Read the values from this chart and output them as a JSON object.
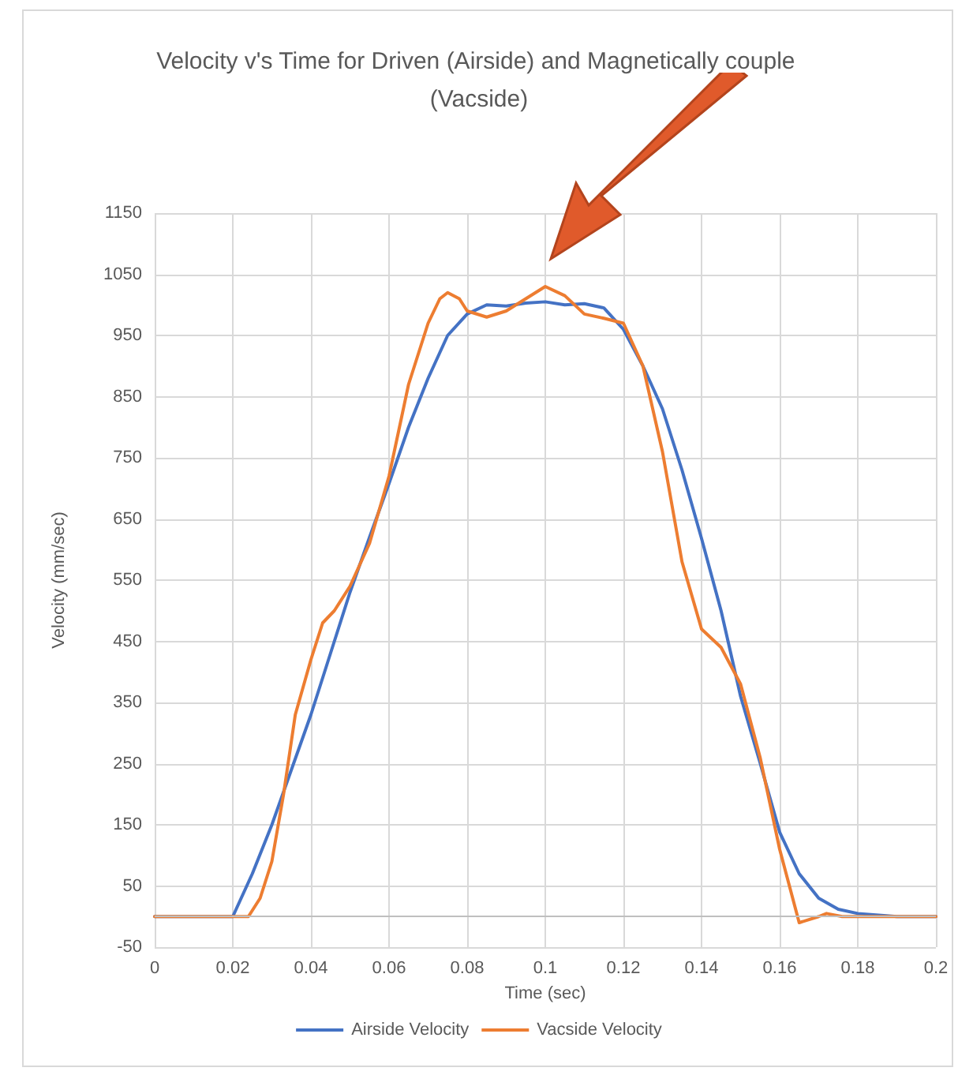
{
  "chart_data": {
    "type": "line",
    "title": "Velocity v's Time for Driven (Airside) and Magnetically couple (Vacside)",
    "xlabel": "Time (sec)",
    "ylabel": "Velocity (mm/sec)",
    "xlim": [
      0,
      0.2
    ],
    "xticks": [
      0,
      0.02,
      0.04,
      0.06,
      0.08,
      0.1,
      0.12,
      0.14,
      0.16,
      0.18,
      0.2
    ],
    "ylim": [
      -50,
      1150
    ],
    "yticks": [
      -50,
      50,
      150,
      250,
      350,
      450,
      550,
      650,
      750,
      850,
      950,
      1050,
      1150
    ],
    "grid": true,
    "legend": "bottom",
    "marker": "none",
    "line_style": "solid",
    "series": [
      {
        "name": "Airside Velocity",
        "color": "#4472c4",
        "x": [
          0,
          0.02,
          0.025,
          0.03,
          0.035,
          0.04,
          0.045,
          0.05,
          0.055,
          0.06,
          0.065,
          0.07,
          0.075,
          0.08,
          0.085,
          0.09,
          0.095,
          0.1,
          0.105,
          0.11,
          0.115,
          0.12,
          0.125,
          0.13,
          0.135,
          0.14,
          0.145,
          0.15,
          0.155,
          0.16,
          0.165,
          0.17,
          0.175,
          0.18,
          0.19,
          0.2
        ],
        "values": [
          0,
          0,
          70,
          150,
          240,
          330,
          430,
          530,
          620,
          708,
          800,
          880,
          950,
          985,
          1000,
          998,
          1003,
          1005,
          1000,
          1002,
          995,
          960,
          900,
          830,
          730,
          618,
          500,
          360,
          251,
          138,
          70,
          30,
          12,
          5,
          0,
          0
        ]
      },
      {
        "name": "Vacside Velocity",
        "color": "#ed7d31",
        "x": [
          0,
          0.024,
          0.027,
          0.03,
          0.033,
          0.036,
          0.04,
          0.043,
          0.046,
          0.05,
          0.055,
          0.06,
          0.065,
          0.07,
          0.073,
          0.075,
          0.078,
          0.08,
          0.085,
          0.09,
          0.095,
          0.1,
          0.105,
          0.11,
          0.115,
          0.12,
          0.125,
          0.13,
          0.135,
          0.14,
          0.145,
          0.15,
          0.155,
          0.16,
          0.165,
          0.17,
          0.172,
          0.176,
          0.18,
          0.19,
          0.2
        ],
        "values": [
          0,
          0,
          30,
          90,
          200,
          330,
          420,
          480,
          500,
          540,
          610,
          720,
          870,
          970,
          1010,
          1020,
          1010,
          990,
          980,
          990,
          1010,
          1030,
          1015,
          985,
          978,
          970,
          900,
          760,
          580,
          470,
          440,
          380,
          260,
          110,
          -10,
          0,
          5,
          0,
          0,
          0,
          0
        ]
      }
    ]
  }
}
